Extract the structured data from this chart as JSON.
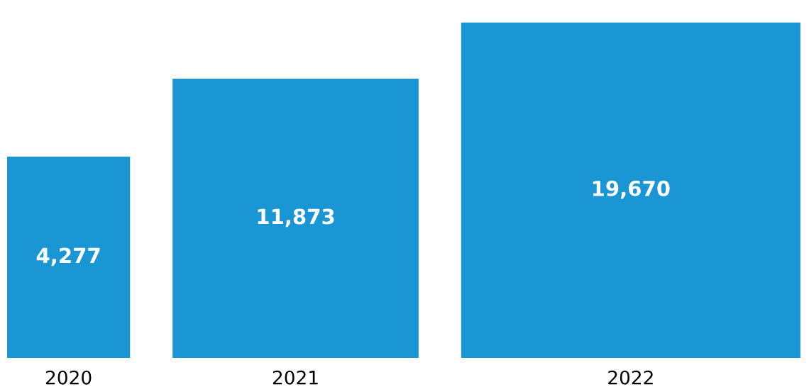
{
  "chart_data": {
    "type": "other",
    "categories": [
      "2020",
      "2021",
      "2022"
    ],
    "values": [
      4277,
      11873,
      19670
    ],
    "value_labels": [
      "4,277",
      "11,873",
      "19,670"
    ],
    "color": "#1a96d4"
  }
}
